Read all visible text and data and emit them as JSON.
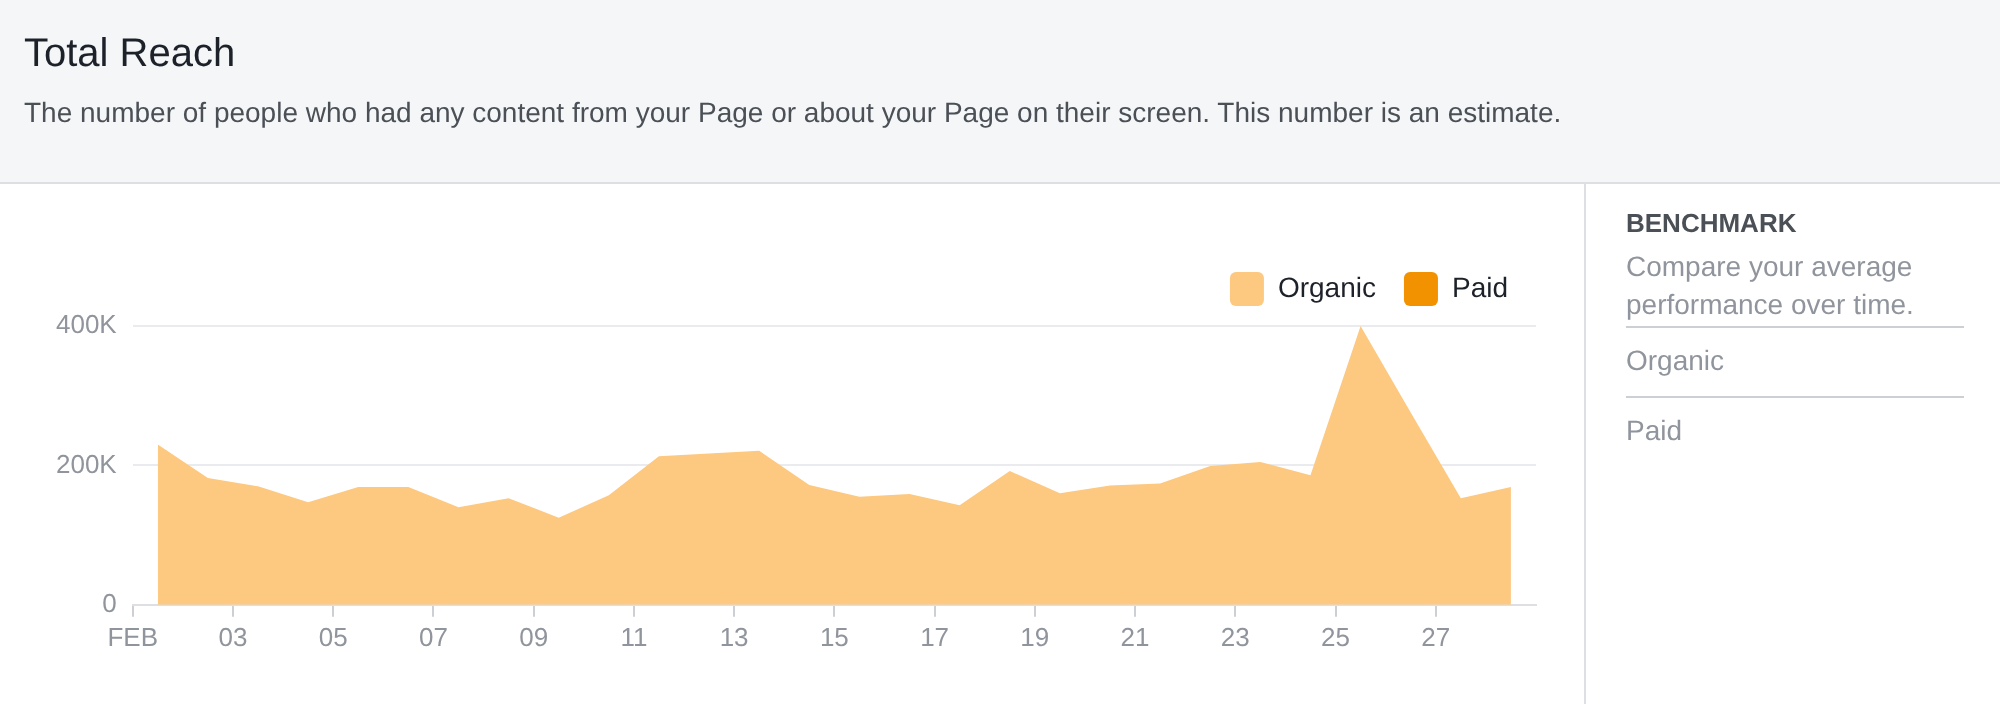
{
  "chart_data": {
    "type": "area",
    "title": "Total Reach",
    "subtitle": "The number of people who had any content from your Page or about your Page on their screen. This number is an estimate.",
    "x": [
      1.5,
      2.5,
      3.5,
      4.5,
      5.5,
      6.5,
      7.5,
      8.5,
      9.5,
      10.5,
      11.5,
      12.5,
      13.5,
      14.5,
      15.5,
      16.5,
      17.5,
      18.5,
      19.5,
      20.5,
      21.5,
      22.5,
      23.5,
      24.5,
      25.5,
      26.5,
      27.5,
      28.5
    ],
    "series": [
      {
        "name": "Organic",
        "color": "#fdc880",
        "values": [
          230000,
          182000,
          170000,
          147000,
          169000,
          169000,
          140000,
          153000,
          125000,
          157000,
          213000,
          217000,
          221000,
          172000,
          155000,
          159000,
          143000,
          192000,
          160000,
          171000,
          174000,
          199000,
          205000,
          186000,
          400000,
          276000,
          153000,
          169000
        ]
      },
      {
        "name": "Paid",
        "color": "#f39200",
        "values": [
          null,
          null,
          null,
          null,
          null,
          null,
          null,
          null,
          null,
          null,
          null,
          null,
          null,
          null,
          null,
          null,
          null,
          null,
          null,
          null,
          null,
          null,
          null,
          null,
          null,
          null,
          null,
          null
        ]
      }
    ],
    "xlim": [
      1,
      29
    ],
    "xticks": [
      {
        "value": 1,
        "label": "FEB"
      },
      {
        "value": 3,
        "label": "03"
      },
      {
        "value": 5,
        "label": "05"
      },
      {
        "value": 7,
        "label": "07"
      },
      {
        "value": 9,
        "label": "09"
      },
      {
        "value": 11,
        "label": "11"
      },
      {
        "value": 13,
        "label": "13"
      },
      {
        "value": 15,
        "label": "15"
      },
      {
        "value": 17,
        "label": "17"
      },
      {
        "value": 19,
        "label": "19"
      },
      {
        "value": 21,
        "label": "21"
      },
      {
        "value": 23,
        "label": "23"
      },
      {
        "value": 25,
        "label": "25"
      },
      {
        "value": 27,
        "label": "27"
      }
    ],
    "ylim": [
      0,
      400000
    ],
    "yticks": [
      0,
      {
        "value": 200000,
        "label": "200K"
      },
      {
        "value": 400000,
        "label": "400K"
      }
    ],
    "grid": "y",
    "legend": "top right",
    "marker": "none",
    "annotations": [
      "BENCHMARK",
      "Compare your average performance over time.",
      "Organic",
      "Paid"
    ]
  }
}
